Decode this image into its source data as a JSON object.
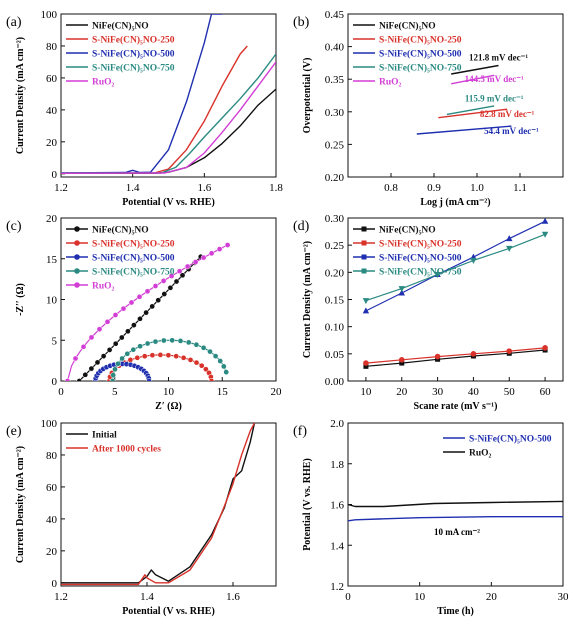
{
  "colors": {
    "black": "#111111",
    "red": "#d8322b",
    "blue": "#1f2fb0",
    "teal": "#2a8a82",
    "magenta": "#d33fd6"
  },
  "chart_data": [
    {
      "id": "a",
      "panel_label": "(a)",
      "type": "line",
      "xlabel": "Potential (V vs. RHE)",
      "ylabel": "Current Density (mA cm⁻²)",
      "xlim": [
        1.2,
        1.8
      ],
      "ylim": [
        -2,
        100
      ],
      "xticks": [
        1.2,
        1.4,
        1.6,
        1.8
      ],
      "yticks": [
        0,
        20,
        40,
        60,
        80,
        100
      ],
      "legend_position": "top-left",
      "series": [
        {
          "name": "NiFe(CN)₅NO",
          "color": "#111111",
          "x": [
            1.2,
            1.46,
            1.5,
            1.55,
            1.6,
            1.65,
            1.7,
            1.75,
            1.8
          ],
          "y": [
            0.3,
            0.3,
            1,
            4,
            10,
            19,
            30,
            43,
            53
          ]
        },
        {
          "name": "S-NiFe(CN)₅NO-250",
          "color": "#d8322b",
          "x": [
            1.2,
            1.46,
            1.5,
            1.55,
            1.6,
            1.65,
            1.7,
            1.72
          ],
          "y": [
            0.5,
            0.5,
            3,
            15,
            33,
            55,
            75,
            80
          ]
        },
        {
          "name": "S-NiFe(CN)₅NO-500",
          "color": "#1f2fb0",
          "x": [
            1.2,
            1.38,
            1.4,
            1.42,
            1.45,
            1.5,
            1.55,
            1.6,
            1.62,
            1.65
          ],
          "y": [
            0.5,
            0.8,
            2.2,
            0.8,
            1,
            15,
            45,
            82,
            100,
            100
          ]
        },
        {
          "name": "S-NiFe(CN)₅NO-750",
          "color": "#2a8a82",
          "x": [
            1.2,
            1.48,
            1.52,
            1.56,
            1.6,
            1.65,
            1.7,
            1.75,
            1.8
          ],
          "y": [
            0.5,
            0.5,
            4,
            13,
            23,
            35,
            47,
            60,
            75
          ]
        },
        {
          "name": "RuO₂",
          "color": "#d33fd6",
          "x": [
            1.2,
            1.49,
            1.55,
            1.6,
            1.65,
            1.7,
            1.75,
            1.8
          ],
          "y": [
            0.3,
            0.5,
            4,
            13,
            26,
            40,
            55,
            70
          ]
        }
      ]
    },
    {
      "id": "b",
      "panel_label": "(b)",
      "type": "line",
      "xlabel": "Log j (mA cm⁻²)",
      "ylabel": "Overpotential (V)",
      "xlim": [
        0.7,
        1.2
      ],
      "ylim": [
        0.2,
        0.45
      ],
      "xticks": [
        0.8,
        0.9,
        1.0,
        1.1
      ],
      "yticks": [
        0.2,
        0.25,
        0.3,
        0.35,
        0.4,
        0.45
      ],
      "legend_position": "top-left",
      "series": [
        {
          "name": "NiFe(CN)₅NO",
          "color": "#111111",
          "x": [
            0.94,
            1.05
          ],
          "y": [
            0.358,
            0.371
          ],
          "annotation": "121.8 mV dec⁻¹"
        },
        {
          "name": "S-NiFe(CN)₅NO-250",
          "color": "#d8322b",
          "x": [
            0.91,
            1.07
          ],
          "y": [
            0.291,
            0.304
          ],
          "annotation": "82.8 mV dec⁻¹"
        },
        {
          "name": "S-NiFe(CN)₅NO-500",
          "color": "#1f2fb0",
          "x": [
            0.86,
            1.08
          ],
          "y": [
            0.266,
            0.278
          ],
          "annotation": "54.4 mV dec⁻¹"
        },
        {
          "name": "S-NiFe(CN)₅NO-750",
          "color": "#2a8a82",
          "x": [
            0.93,
            1.04
          ],
          "y": [
            0.296,
            0.309
          ],
          "annotation": "115.9 mV dec⁻¹"
        },
        {
          "name": "RuO₂",
          "color": "#d33fd6",
          "x": [
            0.94,
            1.04
          ],
          "y": [
            0.343,
            0.356
          ],
          "annotation": "144.5 mV dec⁻¹"
        }
      ]
    },
    {
      "id": "c",
      "panel_label": "(c)",
      "type": "scatter",
      "xlabel": "Z′ (Ω)",
      "ylabel": "-Z′′ (Ω)",
      "xlim": [
        0,
        20
      ],
      "ylim": [
        0,
        20
      ],
      "xticks": [
        0,
        5,
        10,
        15,
        20
      ],
      "yticks": [
        0,
        5,
        10,
        15,
        20
      ],
      "legend_position": "top-left",
      "series": [
        {
          "name": "NiFe(CN)₅NO",
          "color": "#111111",
          "kind": "line",
          "x0": 1.7,
          "x1": 13,
          "a": 1.35,
          "p": 1
        },
        {
          "name": "S-NiFe(CN)₅NO-250",
          "color": "#d8322b",
          "kind": "arc",
          "x0": 4.5,
          "x1": 14,
          "h": 3.2
        },
        {
          "name": "S-NiFe(CN)₅NO-500",
          "color": "#1f2fb0",
          "kind": "arc",
          "x0": 3.2,
          "x1": 8.2,
          "h": 2.1
        },
        {
          "name": "S-NiFe(CN)₅NO-750",
          "color": "#2a8a82",
          "kind": "arc",
          "x0": 4.8,
          "x1": 15.5,
          "h": 5.0,
          "start": 0,
          "stop": 0.93
        },
        {
          "name": "RuO₂",
          "color": "#d33fd6",
          "kind": "line",
          "x0": 0.6,
          "x1": 15.5,
          "a": 3.3,
          "p": 0.6
        }
      ]
    },
    {
      "id": "d",
      "panel_label": "(d)",
      "type": "line",
      "xlabel": "Scane rate (mV s⁻¹)",
      "ylabel": "Current Density (mA cm⁻²)",
      "xlim": [
        5,
        65
      ],
      "ylim": [
        0,
        0.3
      ],
      "xticks": [
        10,
        20,
        30,
        40,
        50,
        60
      ],
      "yticks": [
        0.0,
        0.05,
        0.1,
        0.15,
        0.2,
        0.25,
        0.3
      ],
      "legend_position": "top-left",
      "series": [
        {
          "name": "NiFe(CN)₅NO",
          "color": "#111111",
          "marker": "square",
          "x": [
            10,
            20,
            30,
            40,
            50,
            60
          ],
          "y": [
            0.027,
            0.033,
            0.04,
            0.046,
            0.051,
            0.057
          ]
        },
        {
          "name": "S-NiFe(CN)₅NO-250",
          "color": "#d8322b",
          "marker": "circle",
          "x": [
            10,
            20,
            30,
            40,
            50,
            60
          ],
          "y": [
            0.033,
            0.039,
            0.045,
            0.05,
            0.055,
            0.061
          ]
        },
        {
          "name": "S-NiFe(CN)₅NO-500",
          "color": "#1f2fb0",
          "marker": "triangle",
          "x": [
            10,
            20,
            30,
            40,
            50,
            60
          ],
          "y": [
            0.129,
            0.162,
            0.196,
            0.228,
            0.262,
            0.294
          ]
        },
        {
          "name": "S-NiFe(CN)₅NO-750",
          "color": "#2a8a82",
          "marker": "triangle-down",
          "x": [
            10,
            20,
            30,
            40,
            50,
            60
          ],
          "y": [
            0.148,
            0.17,
            0.196,
            0.222,
            0.244,
            0.27
          ]
        }
      ]
    },
    {
      "id": "e",
      "panel_label": "(e)",
      "type": "line",
      "xlabel": "Potential (V vs. RHE)",
      "ylabel": "Current Density (mA cm⁻²)",
      "xlim": [
        1.2,
        1.7
      ],
      "ylim": [
        -2,
        100
      ],
      "xticks": [
        1.2,
        1.4,
        1.6
      ],
      "yticks": [
        0,
        20,
        40,
        60,
        80,
        100
      ],
      "legend_position": "top-left",
      "series": [
        {
          "name": "Initial",
          "color": "#111111",
          "x": [
            1.2,
            1.38,
            1.4,
            1.41,
            1.42,
            1.45,
            1.5,
            1.55,
            1.58,
            1.6,
            1.62,
            1.64,
            1.65
          ],
          "y": [
            0,
            0,
            4,
            8,
            5,
            1,
            10,
            30,
            47,
            65,
            70,
            88,
            100
          ]
        },
        {
          "name": "After 1000 cycles",
          "color": "#d8322b",
          "x": [
            1.2,
            1.38,
            1.395,
            1.4,
            1.42,
            1.45,
            1.5,
            1.55,
            1.58,
            1.6,
            1.62,
            1.64,
            1.65
          ],
          "y": [
            -1,
            -1,
            5,
            3,
            0,
            0,
            8,
            28,
            48,
            62,
            80,
            95,
            100
          ]
        }
      ]
    },
    {
      "id": "f",
      "panel_label": "(f)",
      "type": "line",
      "xlabel": "Time (h)",
      "ylabel": "Potential (V vs. RHE)",
      "xlim": [
        0,
        30
      ],
      "ylim": [
        1.2,
        2.0
      ],
      "xticks": [
        0,
        10,
        20,
        30
      ],
      "yticks": [
        1.2,
        1.4,
        1.6,
        1.8,
        2.0
      ],
      "legend_position": "top-right",
      "annotation": "10 mA cm⁻²",
      "series": [
        {
          "name": "S-NiFe(CN)₅NO-500",
          "color": "#1f2fb0",
          "x": [
            0,
            1,
            5,
            10,
            20,
            30
          ],
          "y": [
            1.52,
            1.525,
            1.53,
            1.535,
            1.54,
            1.54
          ]
        },
        {
          "name": "RuO₂",
          "color": "#111111",
          "x": [
            0,
            0.5,
            1,
            5,
            12,
            20,
            30
          ],
          "y": [
            1.6,
            1.595,
            1.59,
            1.59,
            1.605,
            1.61,
            1.615
          ]
        }
      ]
    }
  ]
}
